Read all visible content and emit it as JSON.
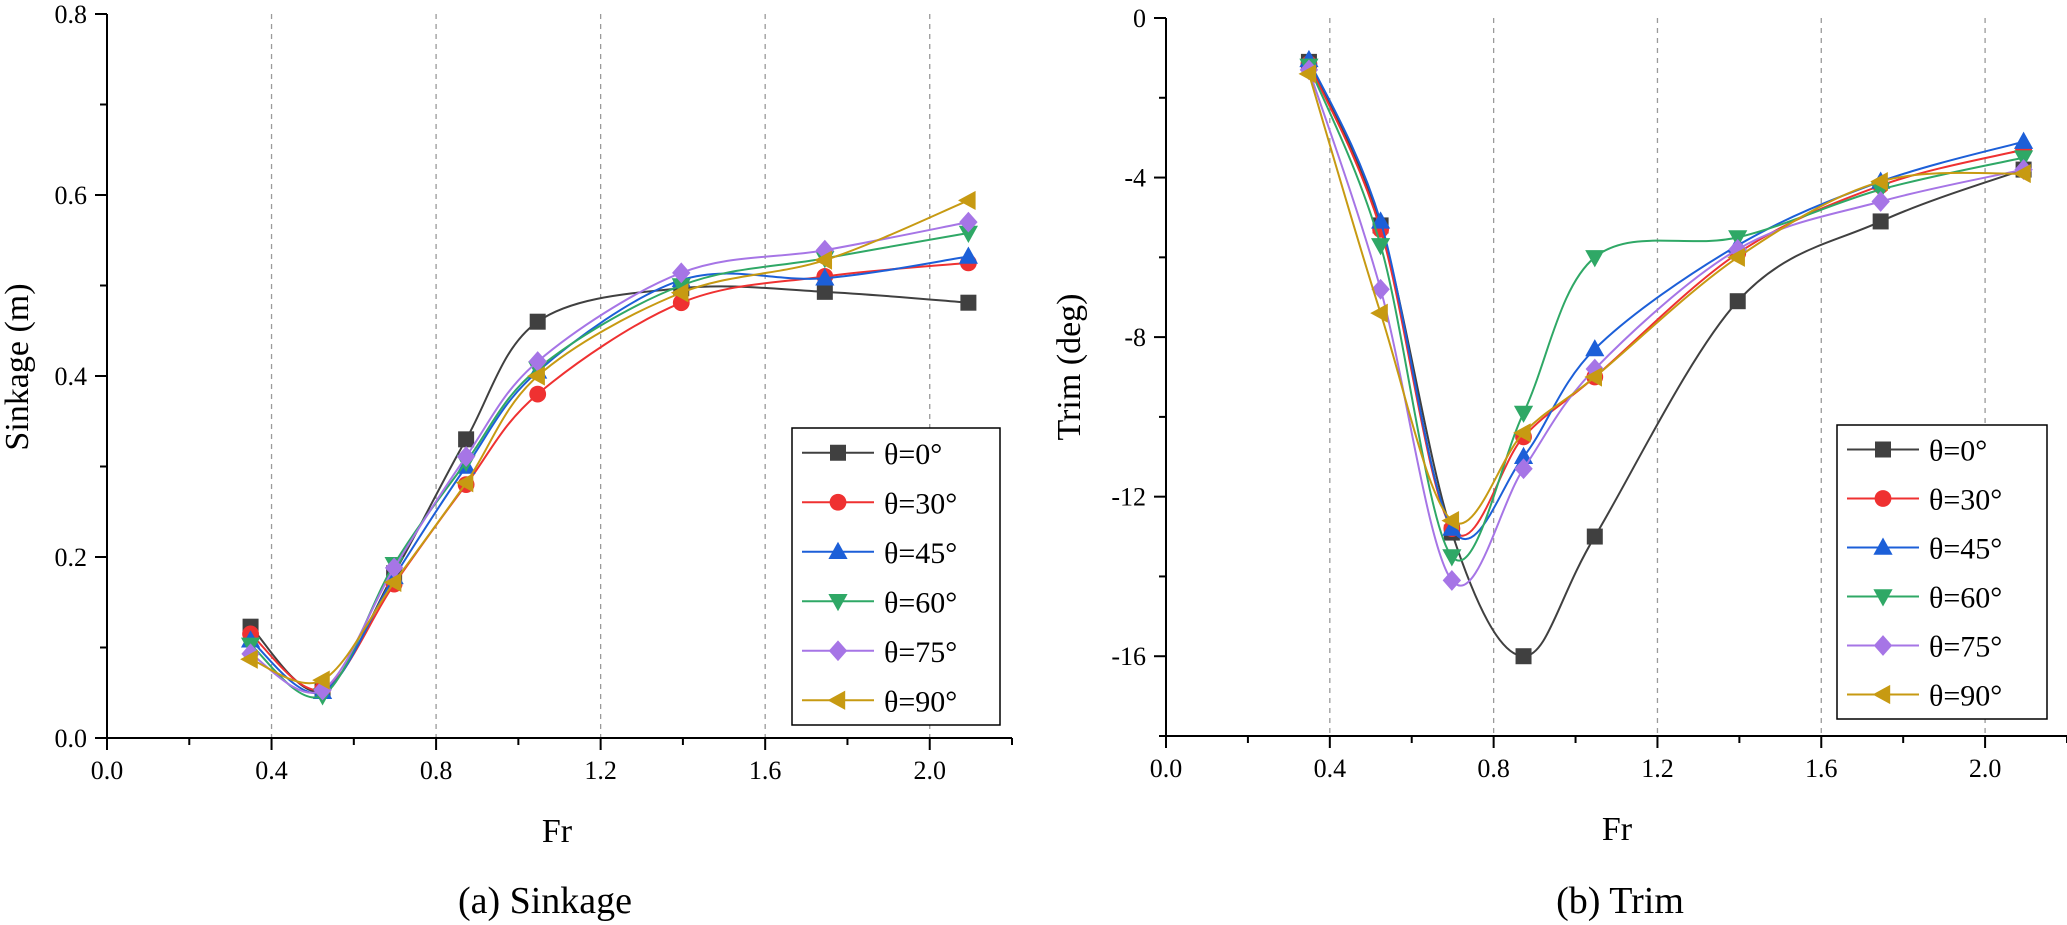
{
  "legend_entries": [
    "θ=0°",
    "θ=30°",
    "θ=45°",
    "θ=60°",
    "θ=75°",
    "θ=90°"
  ],
  "series_style": [
    {
      "color": "#404040",
      "marker": "square"
    },
    {
      "color": "#ef3131",
      "marker": "circle"
    },
    {
      "color": "#1c5fd8",
      "marker": "triangle-up"
    },
    {
      "color": "#2fa866",
      "marker": "triangle-down"
    },
    {
      "color": "#a675e6",
      "marker": "diamond"
    },
    {
      "color": "#c79a12",
      "marker": "triangle-left"
    }
  ],
  "chart_data": [
    {
      "type": "line",
      "caption": "(a) Sinkage",
      "xlabel": "Fr",
      "ylabel": "Sinkage (m)",
      "xlim": [
        0.0,
        2.2
      ],
      "ylim": [
        0.0,
        0.8
      ],
      "xticks": [
        "0.0",
        "0.4",
        "0.8",
        "1.2",
        "1.6",
        "2.0"
      ],
      "yticks": [
        "0.0",
        "0.2",
        "0.4",
        "0.6",
        "0.8"
      ],
      "grid": "vertical dashed",
      "legend_position": "lower-right",
      "x": [
        0.349,
        0.524,
        0.698,
        0.873,
        1.047,
        1.396,
        1.745,
        2.094
      ],
      "series": [
        {
          "name": "θ=0°",
          "values": [
            0.123,
            0.052,
            0.182,
            0.33,
            0.46,
            0.497,
            0.493,
            0.481
          ]
        },
        {
          "name": "θ=30°",
          "values": [
            0.115,
            0.054,
            0.17,
            0.28,
            0.38,
            0.481,
            0.51,
            0.525
          ]
        },
        {
          "name": "θ=45°",
          "values": [
            0.108,
            0.051,
            0.178,
            0.3,
            0.405,
            0.506,
            0.508,
            0.532
          ]
        },
        {
          "name": "θ=60°",
          "values": [
            0.103,
            0.047,
            0.192,
            0.305,
            0.408,
            0.5,
            0.53,
            0.558
          ]
        },
        {
          "name": "θ=75°",
          "values": [
            0.093,
            0.053,
            0.188,
            0.311,
            0.416,
            0.514,
            0.539,
            0.57
          ]
        },
        {
          "name": "θ=90°",
          "values": [
            0.087,
            0.064,
            0.172,
            0.282,
            0.4,
            0.492,
            0.528,
            0.594
          ]
        }
      ]
    },
    {
      "type": "line",
      "caption": "(b) Trim",
      "xlabel": "Fr",
      "ylabel": "Trim (deg)",
      "xlim": [
        0.0,
        2.2
      ],
      "ylim": [
        -18,
        0
      ],
      "xticks": [
        "0.0",
        "0.4",
        "0.8",
        "1.2",
        "1.6",
        "2.0"
      ],
      "yticks": [
        "0",
        "-4",
        "-8",
        "-12",
        "-16"
      ],
      "grid": "vertical dashed",
      "legend_position": "lower-right",
      "x": [
        0.349,
        0.524,
        0.698,
        0.873,
        1.047,
        1.396,
        1.745,
        2.094
      ],
      "series": [
        {
          "name": "θ=0°",
          "values": [
            -1.1,
            -5.2,
            -12.9,
            -16.0,
            -13.0,
            -7.1,
            -5.1,
            -3.8
          ]
        },
        {
          "name": "θ=30°",
          "values": [
            -1.15,
            -5.3,
            -12.8,
            -10.5,
            -9.0,
            -5.9,
            -4.2,
            -3.3
          ]
        },
        {
          "name": "θ=45°",
          "values": [
            -1.05,
            -5.1,
            -12.8,
            -11.0,
            -8.3,
            -5.7,
            -4.1,
            -3.1
          ]
        },
        {
          "name": "θ=60°",
          "values": [
            -1.2,
            -5.7,
            -13.5,
            -9.9,
            -6.0,
            -5.5,
            -4.3,
            -3.5
          ]
        },
        {
          "name": "θ=75°",
          "values": [
            -1.3,
            -6.8,
            -14.1,
            -11.3,
            -8.8,
            -5.8,
            -4.6,
            -3.8
          ]
        },
        {
          "name": "θ=90°",
          "values": [
            -1.4,
            -7.4,
            -12.6,
            -10.4,
            -9.0,
            -6.0,
            -4.1,
            -3.9
          ]
        }
      ]
    }
  ]
}
